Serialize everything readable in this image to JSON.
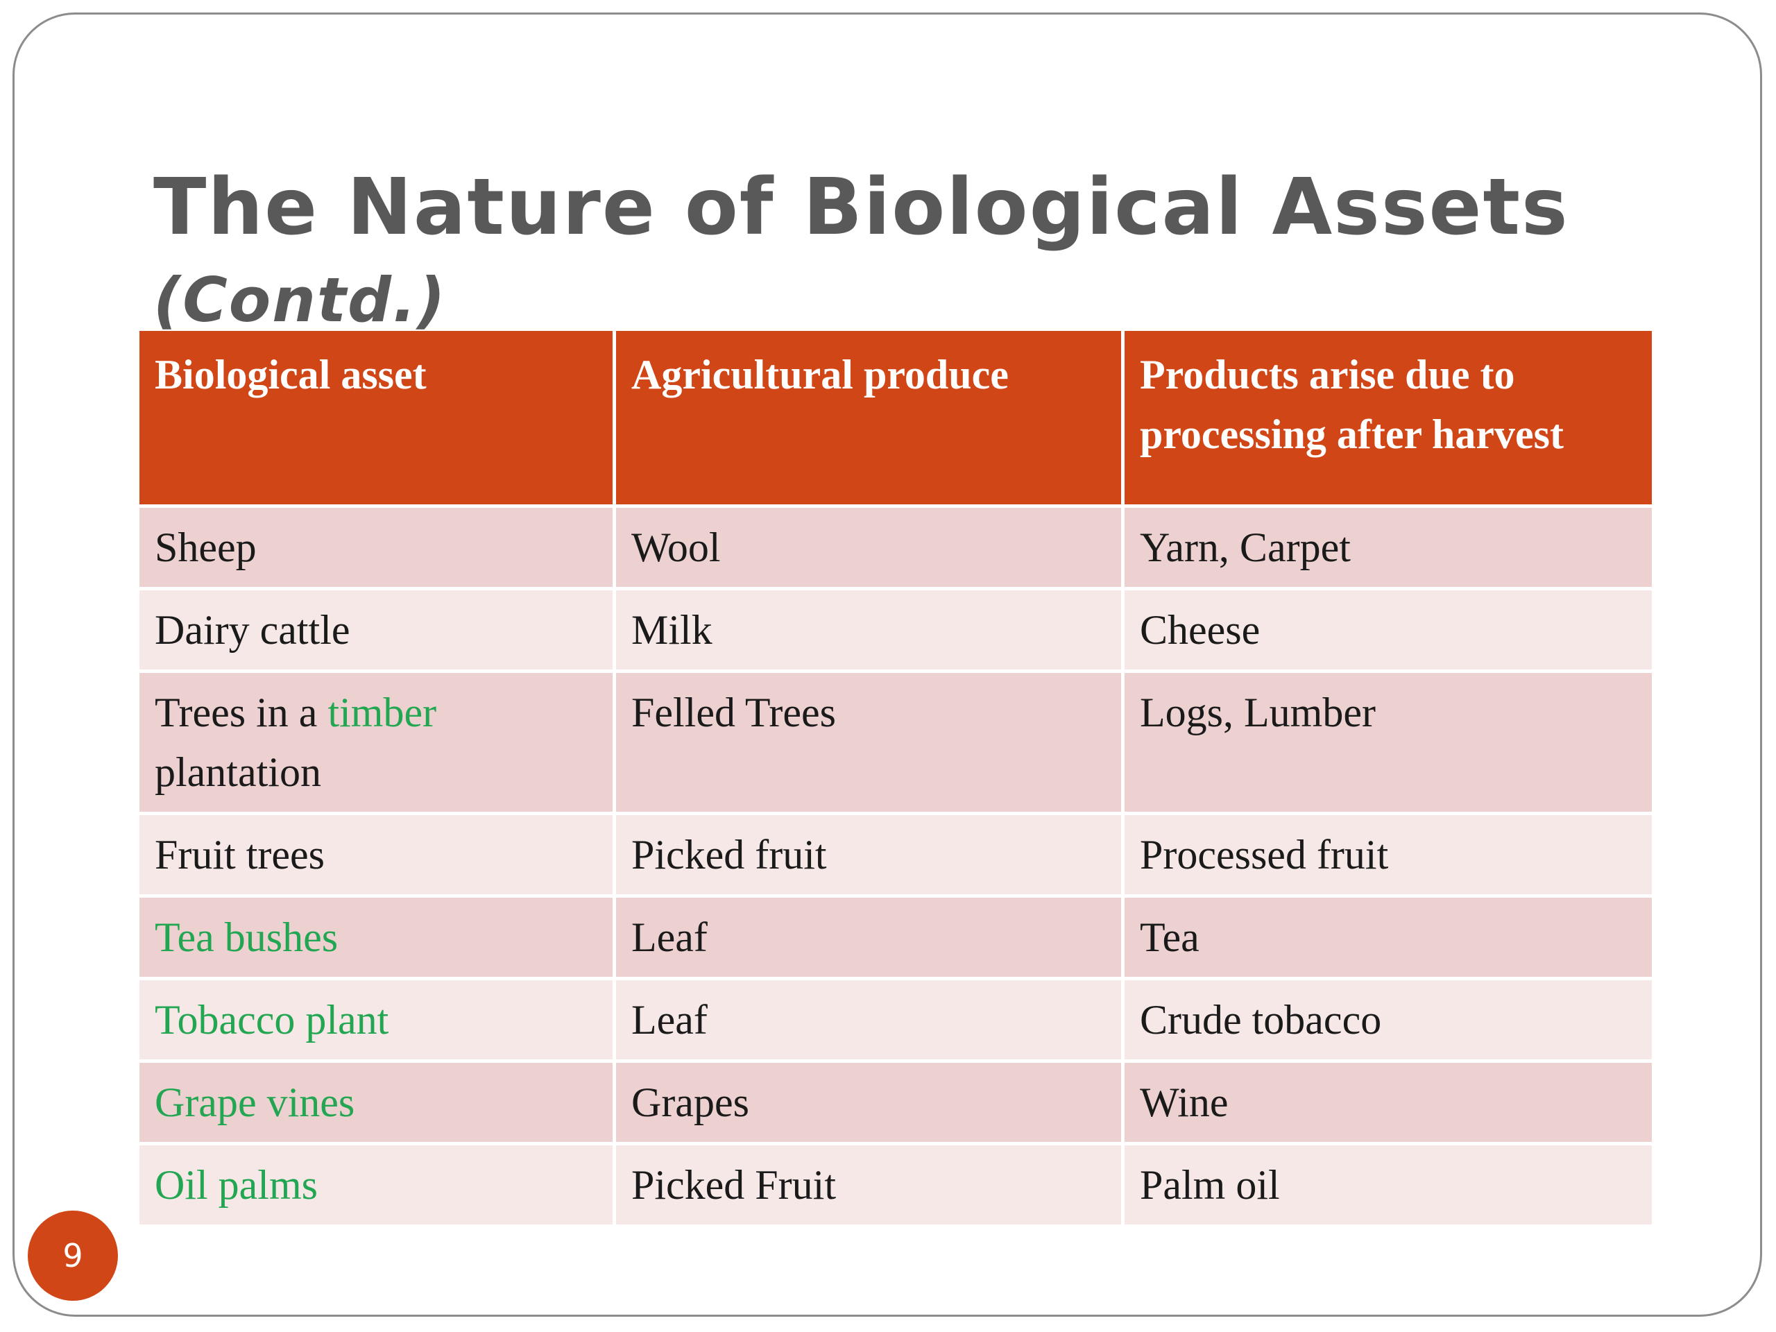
{
  "slide": {
    "title": "The Nature of Biological Assets",
    "subtitle": "(Contd.)",
    "page_number": "9"
  },
  "colors": {
    "header_bg": "#d14616",
    "row_odd": "#ecd1d0",
    "row_even": "#f6e8e7",
    "highlight_text": "#22a651",
    "title_text": "#595959"
  },
  "table": {
    "headers": [
      "Biological asset",
      "Agricultural  produce",
      "Products arise due to processing after harvest"
    ],
    "rows": [
      {
        "asset_a": "Sheep",
        "produce": "Wool",
        "products": "Yarn, Carpet"
      },
      {
        "asset_a": "Dairy cattle",
        "produce": "Milk",
        "products": "Cheese"
      },
      {
        "asset_a": "Trees in a ",
        "asset_b": "timber",
        "asset_c": " plantation",
        "produce": "Felled Trees",
        "products": "Logs, Lumber"
      },
      {
        "asset_a": "Fruit trees",
        "produce": "Picked fruit",
        "products": "Processed fruit"
      },
      {
        "asset_b": "Tea bushes",
        "produce": "Leaf",
        "products": "Tea"
      },
      {
        "asset_b": "Tobacco plant",
        "produce": "Leaf",
        "products": "Crude tobacco"
      },
      {
        "asset_b": "Grape vines",
        "produce": "Grapes",
        "products": "Wine"
      },
      {
        "asset_b": "Oil palms",
        "produce": "Picked Fruit",
        "products": "Palm oil"
      }
    ]
  }
}
